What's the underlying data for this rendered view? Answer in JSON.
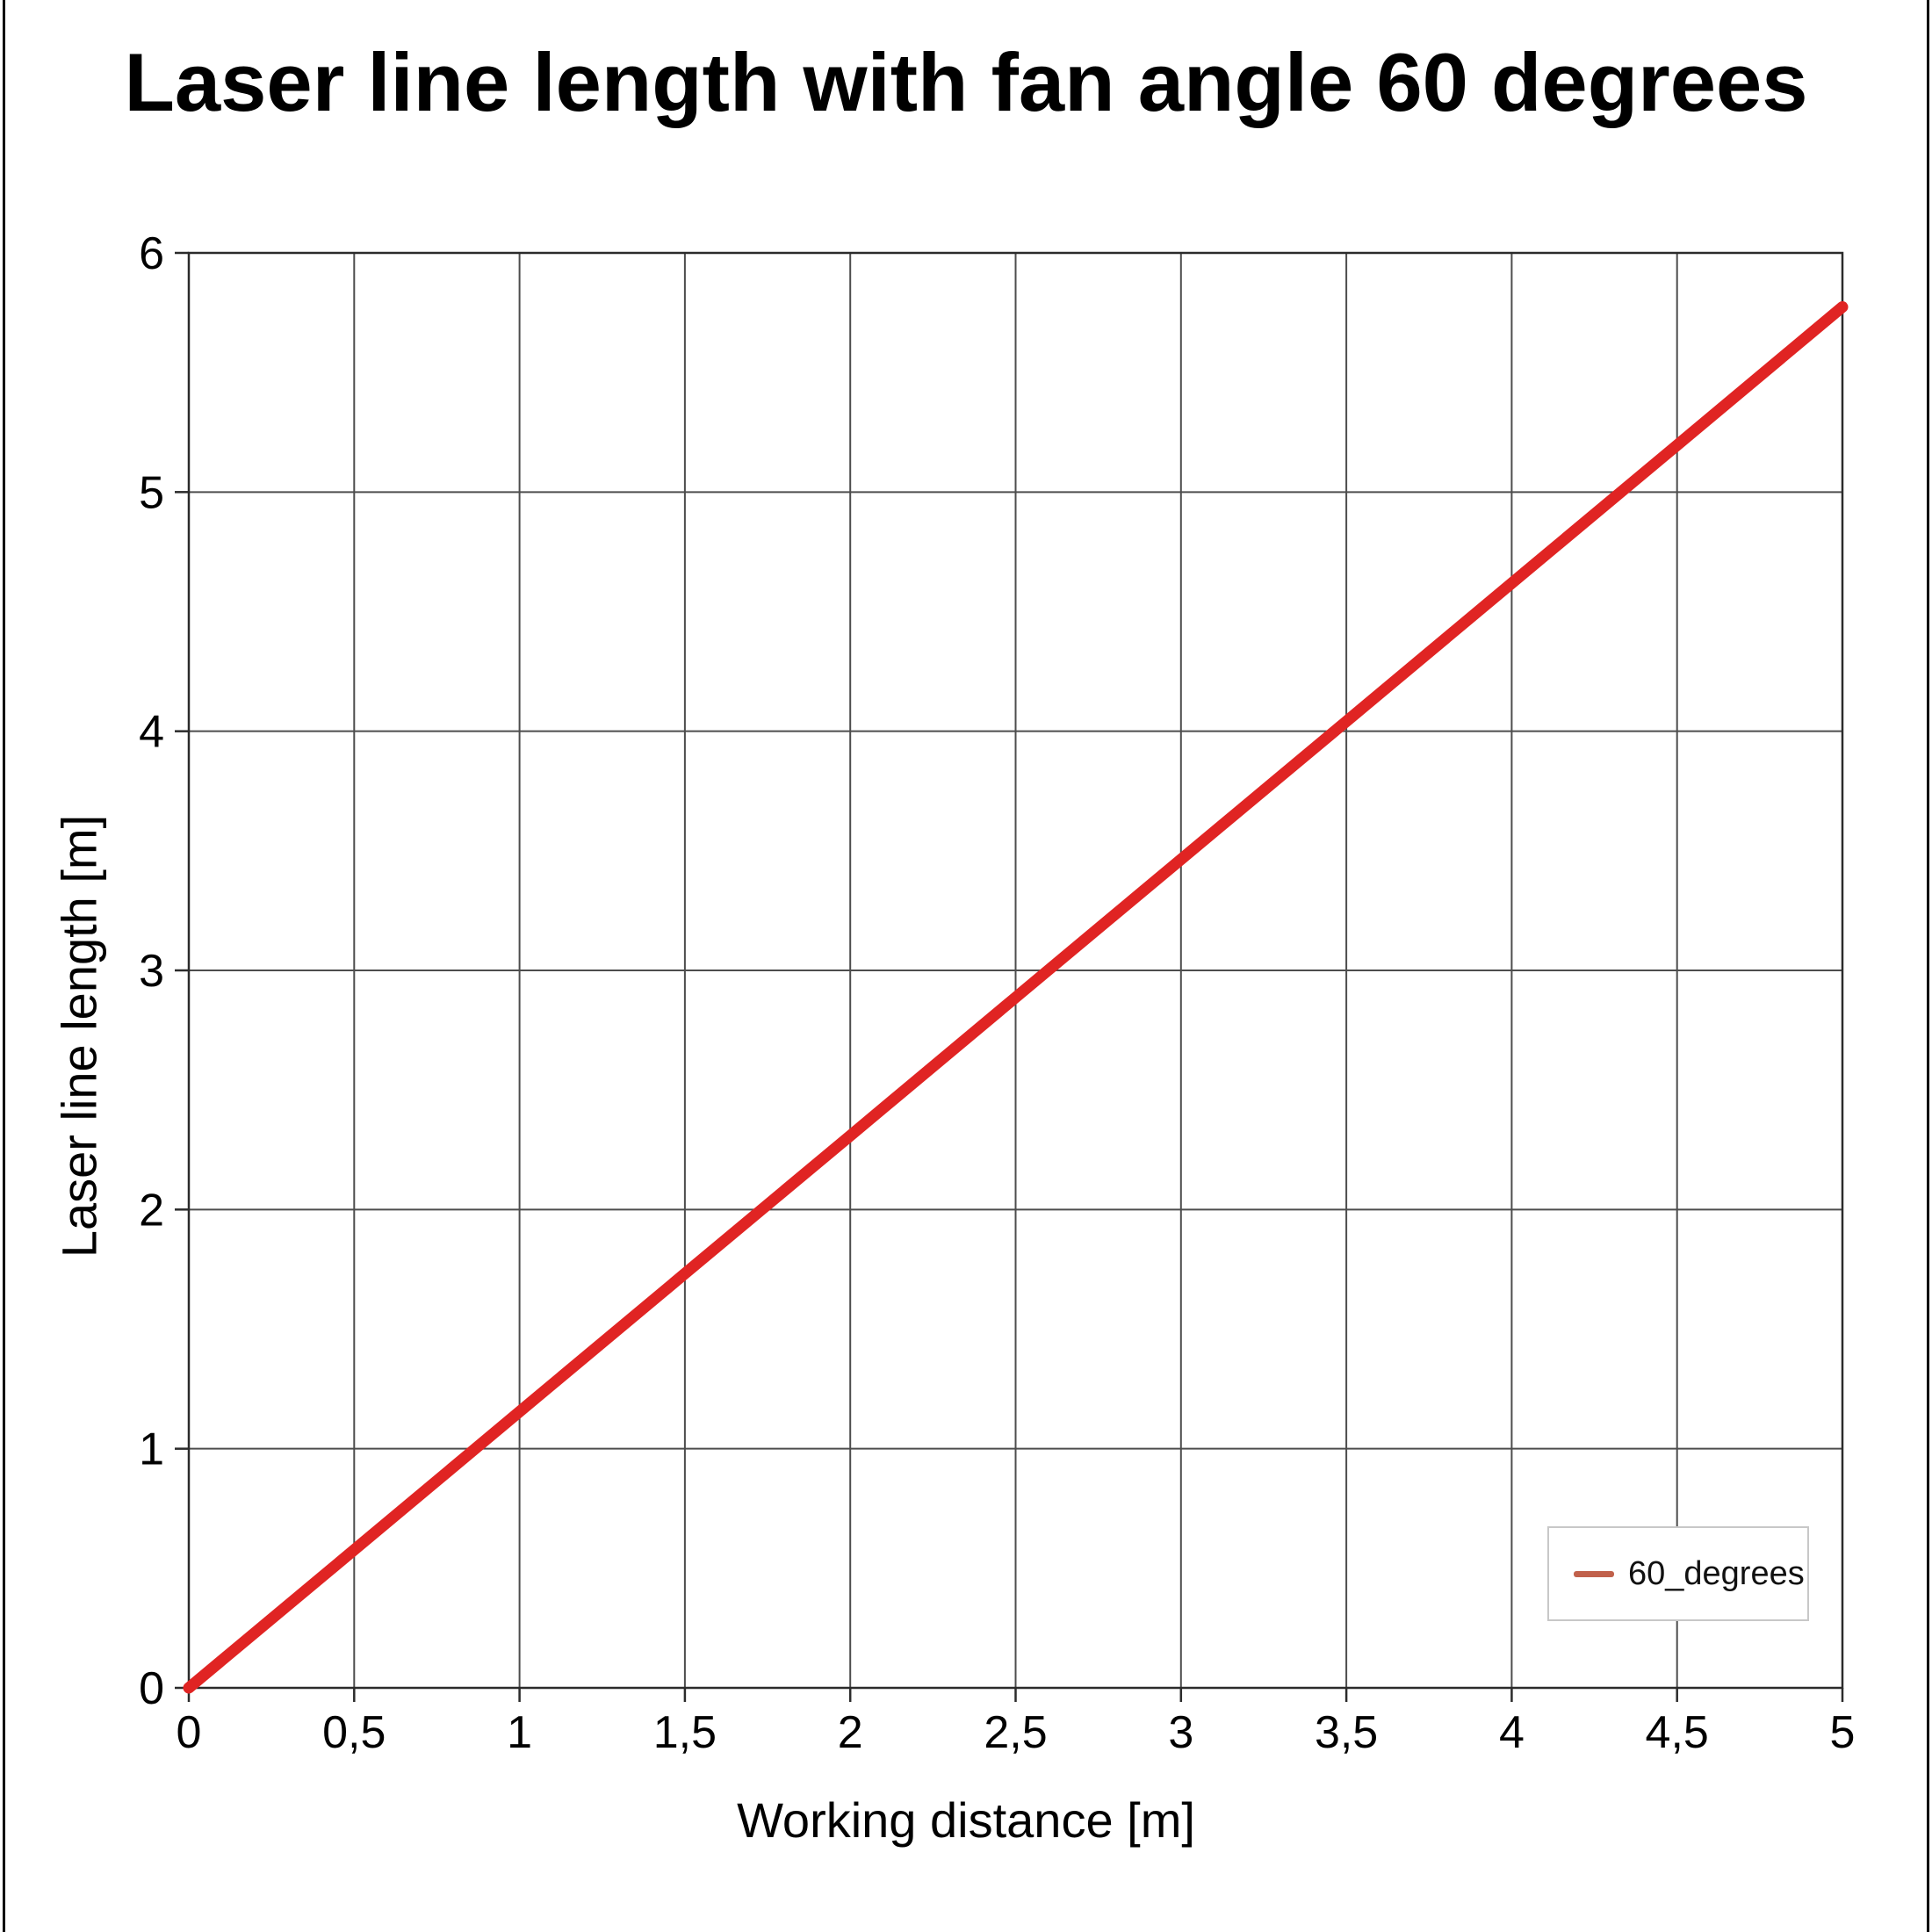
{
  "page": {
    "background": "#ffffff",
    "side_border_color": "#000000"
  },
  "chart_data": {
    "type": "line",
    "title": "Laser line length with fan angle 60 degrees",
    "xlabel": "Working distance [m]",
    "ylabel": "Laser line length [m]",
    "xlim": [
      0,
      5
    ],
    "ylim": [
      0,
      6
    ],
    "grid": true,
    "grid_color": "#4d4d4d",
    "axis_color": "#2b2b2b",
    "x_ticks": [
      0,
      0.5,
      1,
      1.5,
      2,
      2.5,
      3,
      3.5,
      4,
      4.5,
      5
    ],
    "x_tick_labels": [
      "0",
      "0,5",
      "1",
      "1,5",
      "2",
      "2,5",
      "3",
      "3,5",
      "4",
      "4,5",
      "5"
    ],
    "y_ticks": [
      0,
      1,
      2,
      3,
      4,
      5,
      6
    ],
    "y_tick_labels": [
      "0",
      "1",
      "2",
      "3",
      "4",
      "5",
      "6"
    ],
    "series": [
      {
        "name": "60_degrees",
        "color": "#e02423",
        "line_width": 13,
        "x": [
          0,
          0.5,
          1,
          1.5,
          2,
          2.5,
          3,
          3.5,
          4,
          4.5,
          5
        ],
        "y": [
          0,
          0.577,
          1.155,
          1.732,
          2.309,
          2.887,
          3.464,
          4.041,
          4.619,
          5.196,
          5.774
        ]
      }
    ],
    "legend": {
      "position": "bottom-right",
      "border_color": "#c8c8c8",
      "entries": [
        {
          "label": "60_degrees",
          "swatch_color": "#c1614b"
        }
      ]
    }
  }
}
